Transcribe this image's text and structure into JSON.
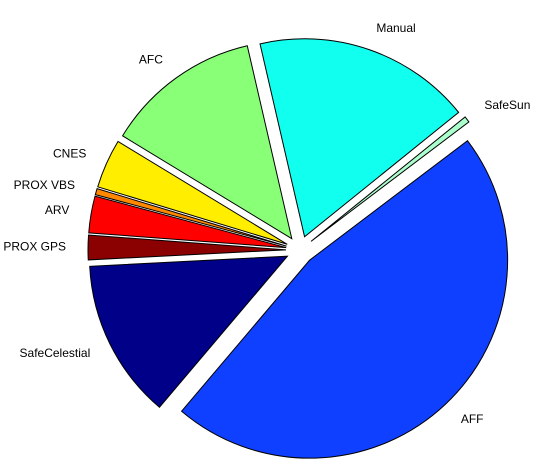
{
  "chart_data": {
    "type": "pie",
    "categories": [
      "Manual",
      "SafeSun",
      "AFF",
      "SafeCelestial",
      "PROX GPS",
      "ARV",
      "PROX VBS",
      "CNES",
      "AFC"
    ],
    "values": [
      17.8,
      0.5,
      46.5,
      13,
      2,
      3,
      0.5,
      4,
      12.7
    ],
    "colors": [
      "#11ffee",
      "#aaffcc",
      "#1040ff",
      "#000088",
      "#8b0000",
      "#ff0000",
      "#ff8800",
      "#ffee00",
      "#88ff77"
    ],
    "exploded": true
  }
}
